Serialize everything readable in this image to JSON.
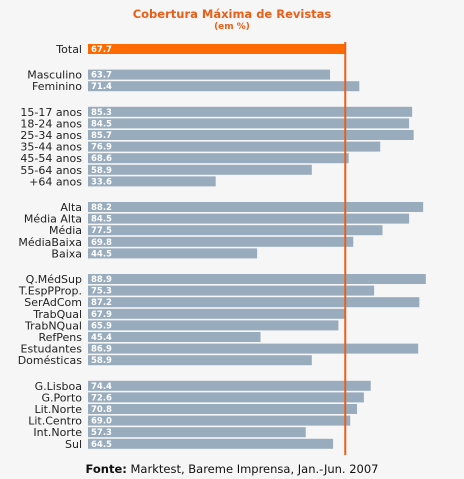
{
  "chart_data": {
    "type": "bar",
    "orientation": "horizontal",
    "title": "Cobertura Máxima de Revistas",
    "subtitle": "(em %)",
    "categories": [
      "Total",
      "Masculino",
      "Feminino",
      "15-17 anos",
      "18-24 anos",
      "25-34 anos",
      "35-44 anos",
      "45-54 anos",
      "55-64 anos",
      "+64 anos",
      "Alta",
      "Média Alta",
      "Média",
      "MédiaBaixa",
      "Baixa",
      "Q.MédSup",
      "T.EspPProp.",
      "SerAdCom",
      "TrabQual",
      "TrabNQual",
      "RefPens",
      "Estudantes",
      "Domésticas",
      "G.Lisboa",
      "G.Porto",
      "Lit.Norte",
      "Lit.Centro",
      "Int.Norte",
      "Sul"
    ],
    "values": [
      67.7,
      63.7,
      71.4,
      85.3,
      84.5,
      85.7,
      76.9,
      68.6,
      58.9,
      33.6,
      88.2,
      84.5,
      77.5,
      69.8,
      44.5,
      88.9,
      75.3,
      87.2,
      67.9,
      65.9,
      45.4,
      86.9,
      58.9,
      74.4,
      72.6,
      70.8,
      69.0,
      57.3,
      64.5
    ],
    "value_labels": [
      "67.7",
      "63.7",
      "71.4",
      "85.3",
      "84.5",
      "85.7",
      "76.9",
      "68.6",
      "58.9",
      "33.6",
      "88.2",
      "84.5",
      "77.5",
      "69.8",
      "44.5",
      "88.9",
      "75.3",
      "87.2",
      "67.9",
      "65.9",
      "45.4",
      "86.9",
      "58.9",
      "74.4",
      "72.6",
      "70.8",
      "69.0",
      "57.3",
      "64.5"
    ],
    "groups": [
      [
        0
      ],
      [
        1,
        2
      ],
      [
        3,
        4,
        5,
        6,
        7,
        8,
        9
      ],
      [
        10,
        11,
        12,
        13,
        14
      ],
      [
        15,
        16,
        17,
        18,
        19,
        20,
        21,
        22
      ],
      [
        23,
        24,
        25,
        26,
        27,
        28
      ]
    ],
    "reference_line": 67.7,
    "xlim": [
      0,
      90
    ],
    "highlight_index": 0,
    "grid": false,
    "legend": "none"
  },
  "colors": {
    "highlight": "#ff6a00",
    "bar": "#98acbe",
    "reference_line": "#e8601a"
  },
  "source": {
    "label": "Fonte:",
    "text": " Marktest, Bareme Imprensa, Jan.-Jun. 2007"
  }
}
